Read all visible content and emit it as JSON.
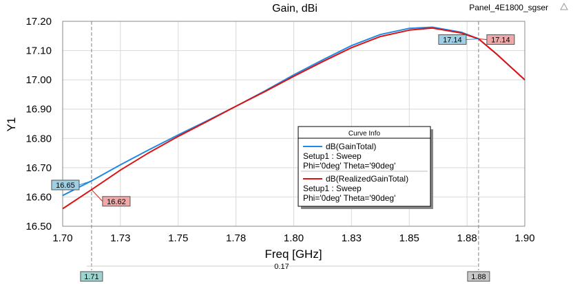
{
  "header": {
    "title": "Gain, dBi",
    "project": "Panel_4E1800_sgser"
  },
  "chart_data": {
    "type": "line",
    "title": "Gain, dBi",
    "xlabel": "Freq [GHz]",
    "ylabel": "Y1",
    "xlim": [
      1.7,
      1.9
    ],
    "ylim": [
      16.5,
      17.2
    ],
    "x_ticks": [
      "1.70",
      "1.73",
      "1.75",
      "1.78",
      "1.80",
      "1.83",
      "1.85",
      "1.88",
      "1.90"
    ],
    "x_tick_values": [
      1.7,
      1.725,
      1.75,
      1.775,
      1.8,
      1.825,
      1.85,
      1.875,
      1.9
    ],
    "y_ticks": [
      "16.50",
      "16.60",
      "16.70",
      "16.80",
      "16.90",
      "17.00",
      "17.10",
      "17.20"
    ],
    "y_tick_values": [
      16.5,
      16.6,
      16.7,
      16.8,
      16.9,
      17.0,
      17.1,
      17.2
    ],
    "grid": true,
    "legend_position": "center-right",
    "legend_title": "Curve Info",
    "series": [
      {
        "name": "dB(GainTotal)",
        "legend_lines": [
          "dB(GainTotal)",
          "Setup1 : Sweep",
          "Phi='0deg' Theta='90deg'"
        ],
        "color": "#1e88e5",
        "x": [
          1.7,
          1.7125,
          1.725,
          1.7375,
          1.75,
          1.7625,
          1.775,
          1.7875,
          1.8,
          1.8125,
          1.825,
          1.8375,
          1.85,
          1.86,
          1.8725,
          1.88,
          1.8875,
          1.9
        ],
        "y": [
          16.605,
          16.655,
          16.71,
          16.762,
          16.812,
          16.86,
          16.91,
          16.962,
          17.017,
          17.068,
          17.117,
          17.155,
          17.176,
          17.18,
          17.163,
          17.14,
          17.09,
          17.0
        ]
      },
      {
        "name": "dB(RealizedGainTotal)",
        "legend_lines": [
          "dB(RealizedGainTotal)",
          "Setup1 : Sweep",
          "Phi='0deg' Theta='90deg'"
        ],
        "color": "#e01010",
        "x": [
          1.7,
          1.7125,
          1.725,
          1.7375,
          1.75,
          1.7625,
          1.775,
          1.7875,
          1.8,
          1.8125,
          1.825,
          1.8375,
          1.85,
          1.86,
          1.8725,
          1.88,
          1.8875,
          1.9
        ],
        "y": [
          16.56,
          16.625,
          16.692,
          16.752,
          16.807,
          16.858,
          16.91,
          16.96,
          17.012,
          17.062,
          17.11,
          17.148,
          17.17,
          17.177,
          17.16,
          17.14,
          17.09,
          17.0
        ]
      }
    ],
    "markers": [
      {
        "x": 1.7125,
        "label": "1.71"
      },
      {
        "x": 1.88,
        "label": "1.88"
      }
    ],
    "marker_values": [
      {
        "series": 0,
        "x": 1.7125,
        "y": 16.655,
        "label": "16.65",
        "side": "left"
      },
      {
        "series": 1,
        "x": 1.7125,
        "y": 16.625,
        "label": "16.62",
        "side": "right"
      },
      {
        "series": 0,
        "x": 1.88,
        "y": 17.14,
        "label": "17.14",
        "side": "left"
      },
      {
        "series": 1,
        "x": 1.88,
        "y": 17.14,
        "label": "17.14",
        "side": "right"
      }
    ],
    "delta": {
      "label": "0.17"
    }
  }
}
